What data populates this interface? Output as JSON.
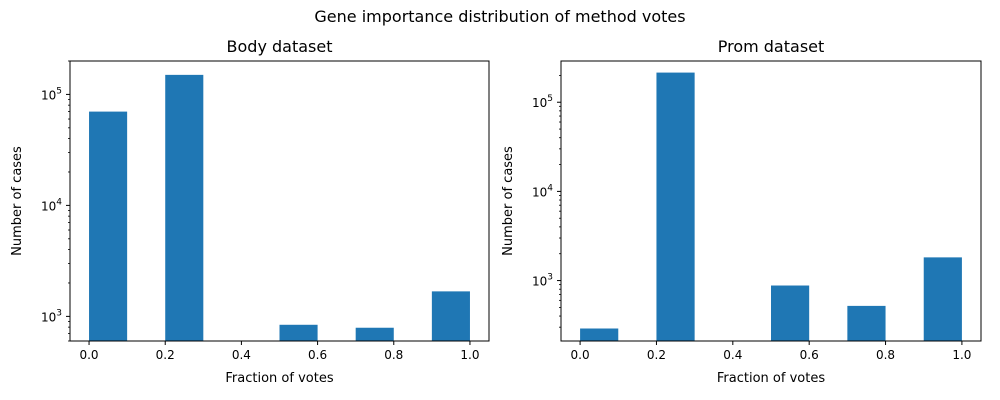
{
  "figure": {
    "title": "Gene importance distribution of method votes"
  },
  "chart_data": [
    {
      "type": "bar",
      "title": "Body dataset",
      "xlabel": "Fraction of votes",
      "ylabel": "Number of cases",
      "yscale": "log",
      "xlim": [
        -0.05,
        1.05
      ],
      "ylim": [
        600,
        200000
      ],
      "bar_width": 0.1,
      "color": "#1f77b4",
      "x": [
        0.0,
        0.2,
        0.5,
        0.7,
        0.9
      ],
      "values": [
        70000,
        150000,
        840,
        790,
        1680
      ],
      "xticks": [
        0.0,
        0.2,
        0.4,
        0.6,
        0.8,
        1.0
      ],
      "xtick_labels": [
        "0.0",
        "0.2",
        "0.4",
        "0.6",
        "0.8",
        "1.0"
      ],
      "yticks": [
        1000,
        10000,
        100000
      ],
      "ytick_labels": [
        {
          "base": "10",
          "exp": "3"
        },
        {
          "base": "10",
          "exp": "4"
        },
        {
          "base": "10",
          "exp": "5"
        }
      ]
    },
    {
      "type": "bar",
      "title": "Prom dataset",
      "xlabel": "Fraction of votes",
      "ylabel": "Number of cases",
      "yscale": "log",
      "xlim": [
        -0.05,
        1.05
      ],
      "ylim": [
        210,
        290000
      ],
      "bar_width": 0.1,
      "color": "#1f77b4",
      "x": [
        0.0,
        0.2,
        0.5,
        0.7,
        0.9
      ],
      "values": [
        290,
        215000,
        880,
        520,
        1820
      ],
      "xticks": [
        0.0,
        0.2,
        0.4,
        0.6,
        0.8,
        1.0
      ],
      "xtick_labels": [
        "0.0",
        "0.2",
        "0.4",
        "0.6",
        "0.8",
        "1.0"
      ],
      "yticks": [
        1000,
        10000,
        100000
      ],
      "ytick_labels": [
        {
          "base": "10",
          "exp": "3"
        },
        {
          "base": "10",
          "exp": "4"
        },
        {
          "base": "10",
          "exp": "5"
        }
      ]
    }
  ]
}
